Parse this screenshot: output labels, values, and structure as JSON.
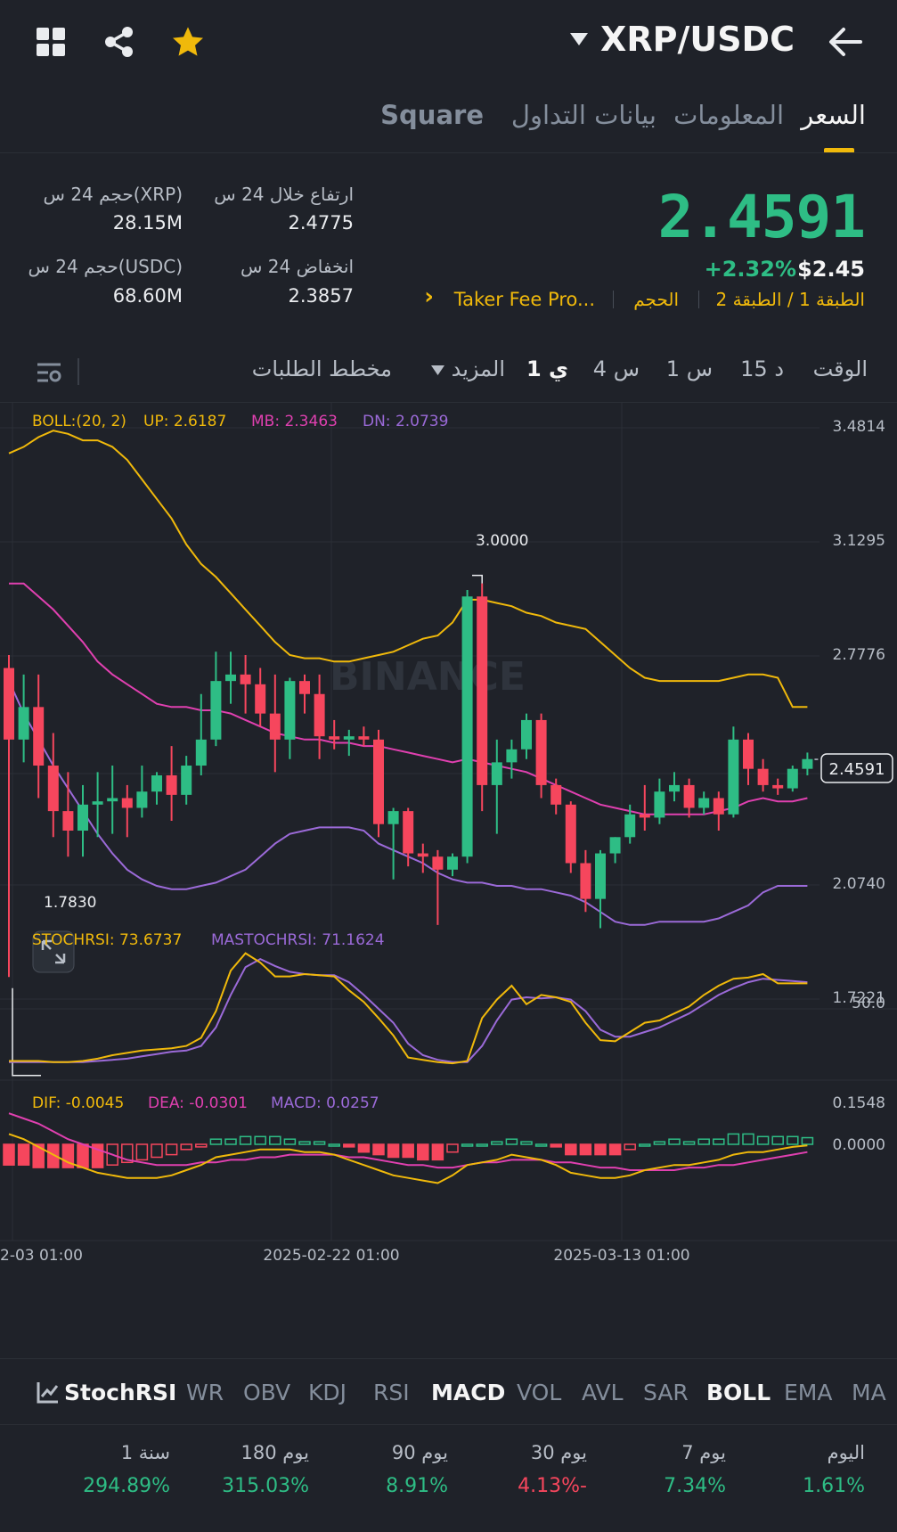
{
  "header": {
    "pair": "XRP/USDC",
    "icons": [
      "grid-icon",
      "share-icon",
      "star-icon",
      "dropdown-caret-icon",
      "back-arrow-icon"
    ]
  },
  "tabs": [
    "السعر",
    "المعلومات",
    "بيانات التداول",
    "Square"
  ],
  "stats": {
    "price": "2.4591",
    "fiat": "$2.45",
    "change": "+2.32%",
    "high_label": "ارتفاع خلال 24 س",
    "high": "2.4775",
    "low_label": "انخفاض 24 س",
    "low": "2.3857",
    "vol_xrp_label": "حجم 24 س(XRP)",
    "vol_xrp": "28.15M",
    "vol_usdc_label": "حجم 24 س(USDC)",
    "vol_usdc": "68.60M",
    "tag1": "الطبقة 1 / الطبقة 2",
    "tag2": "الحجم",
    "tag3": "Taker Fee Pro...",
    "tag_arrow": "›"
  },
  "intervals": {
    "time": "الوقت",
    "m15": "15 د",
    "h1": "1 س",
    "h4": "4 س",
    "d1": "1 ي",
    "more": "المزيد",
    "depth": "مخطط الطلبات"
  },
  "chart": {
    "boll_label": "BOLL:(20, 2)",
    "boll_up": "UP: 2.6187",
    "boll_mb": "MB: 2.3463",
    "boll_dn": "DN: 2.0739",
    "y_ticks": [
      "3.4814",
      "3.1295",
      "2.7776",
      "2.0740",
      "1.7221"
    ],
    "current_price": "2.4591",
    "max_label": "3.0000",
    "min_label": "1.7830",
    "watermark": "BINANCE",
    "stoch_label": "STOCHRSI: 73.6737",
    "mastoch_label": "MASTOCHRSI: 71.1624",
    "stoch_tick": "50.0",
    "dif_label": "DIF: -0.0045",
    "dea_label": "DEA: -0.0301",
    "macd_label": "MACD: 0.0257",
    "macd_ticks": [
      "0.1548",
      "0.0000"
    ],
    "x_labels": [
      "2-03 01:00",
      "2025-02-22 01:00",
      "2025-03-13 01:00"
    ],
    "colors": {
      "up": "#2ebd85",
      "down": "#f6465d",
      "boll_up": "#f0b90b",
      "boll_mb": "#e040b0",
      "boll_dn": "#9b6ad8"
    }
  },
  "chart_data": {
    "type": "candlestick",
    "interval": "1d",
    "ylim": [
      1.7221,
      3.4814
    ],
    "candles": [
      {
        "o": 2.74,
        "h": 2.78,
        "c": 2.52,
        "l": 1.79
      },
      {
        "o": 2.52,
        "h": 2.72,
        "c": 2.62,
        "l": 2.45
      },
      {
        "o": 2.62,
        "h": 2.72,
        "c": 2.44,
        "l": 2.34
      },
      {
        "o": 2.44,
        "h": 2.54,
        "c": 2.3,
        "l": 2.22
      },
      {
        "o": 2.3,
        "h": 2.42,
        "c": 2.24,
        "l": 2.16
      },
      {
        "o": 2.24,
        "h": 2.38,
        "c": 2.32,
        "l": 2.16
      },
      {
        "o": 2.32,
        "h": 2.42,
        "c": 2.33,
        "l": 2.22
      },
      {
        "o": 2.33,
        "h": 2.44,
        "c": 2.34,
        "l": 2.23
      },
      {
        "o": 2.34,
        "h": 2.38,
        "c": 2.31,
        "l": 2.22
      },
      {
        "o": 2.31,
        "h": 2.44,
        "c": 2.36,
        "l": 2.28
      },
      {
        "o": 2.36,
        "h": 2.42,
        "c": 2.41,
        "l": 2.32
      },
      {
        "o": 2.41,
        "h": 2.5,
        "c": 2.35,
        "l": 2.27
      },
      {
        "o": 2.35,
        "h": 2.47,
        "c": 2.44,
        "l": 2.32
      },
      {
        "o": 2.44,
        "h": 2.66,
        "c": 2.52,
        "l": 2.41
      },
      {
        "o": 2.52,
        "h": 2.79,
        "c": 2.7,
        "l": 2.5
      },
      {
        "o": 2.7,
        "h": 2.79,
        "c": 2.72,
        "l": 2.63
      },
      {
        "o": 2.72,
        "h": 2.78,
        "c": 2.69,
        "l": 2.6
      },
      {
        "o": 2.69,
        "h": 2.74,
        "c": 2.6,
        "l": 2.56
      },
      {
        "o": 2.6,
        "h": 2.72,
        "c": 2.52,
        "l": 2.42
      },
      {
        "o": 2.52,
        "h": 2.71,
        "c": 2.7,
        "l": 2.46
      },
      {
        "o": 2.7,
        "h": 2.72,
        "c": 2.66,
        "l": 2.6
      },
      {
        "o": 2.66,
        "h": 2.72,
        "c": 2.53,
        "l": 2.46
      },
      {
        "o": 2.53,
        "h": 2.58,
        "c": 2.52,
        "l": 2.49
      },
      {
        "o": 2.52,
        "h": 2.55,
        "c": 2.53,
        "l": 2.47
      },
      {
        "o": 2.53,
        "h": 2.56,
        "c": 2.52,
        "l": 2.5
      },
      {
        "o": 2.52,
        "h": 2.55,
        "c": 2.26,
        "l": 2.22
      },
      {
        "o": 2.26,
        "h": 2.31,
        "c": 2.3,
        "l": 2.09
      },
      {
        "o": 2.3,
        "h": 2.31,
        "c": 2.17,
        "l": 2.13
      },
      {
        "o": 2.17,
        "h": 2.2,
        "c": 2.16,
        "l": 2.11
      },
      {
        "o": 2.16,
        "h": 2.18,
        "c": 2.12,
        "l": 1.95
      },
      {
        "o": 2.12,
        "h": 2.17,
        "c": 2.16,
        "l": 2.1
      },
      {
        "o": 2.16,
        "h": 2.98,
        "c": 2.96,
        "l": 2.14
      },
      {
        "o": 2.96,
        "h": 3.0,
        "c": 2.38,
        "l": 2.3
      },
      {
        "o": 2.38,
        "h": 2.52,
        "c": 2.45,
        "l": 2.23
      },
      {
        "o": 2.45,
        "h": 2.52,
        "c": 2.49,
        "l": 2.4
      },
      {
        "o": 2.49,
        "h": 2.6,
        "c": 2.58,
        "l": 2.46
      },
      {
        "o": 2.58,
        "h": 2.6,
        "c": 2.38,
        "l": 2.34
      },
      {
        "o": 2.38,
        "h": 2.4,
        "c": 2.32,
        "l": 2.29
      },
      {
        "o": 2.32,
        "h": 2.33,
        "c": 2.14,
        "l": 2.11
      },
      {
        "o": 2.14,
        "h": 2.18,
        "c": 2.03,
        "l": 1.99
      },
      {
        "o": 2.03,
        "h": 2.18,
        "c": 2.17,
        "l": 1.94
      },
      {
        "o": 2.17,
        "h": 2.22,
        "c": 2.22,
        "l": 2.14
      },
      {
        "o": 2.22,
        "h": 2.32,
        "c": 2.29,
        "l": 2.2
      },
      {
        "o": 2.29,
        "h": 2.38,
        "c": 2.28,
        "l": 2.24
      },
      {
        "o": 2.28,
        "h": 2.4,
        "c": 2.36,
        "l": 2.26
      },
      {
        "o": 2.36,
        "h": 2.42,
        "c": 2.38,
        "l": 2.33
      },
      {
        "o": 2.38,
        "h": 2.4,
        "c": 2.31,
        "l": 2.28
      },
      {
        "o": 2.31,
        "h": 2.36,
        "c": 2.34,
        "l": 2.29
      },
      {
        "o": 2.34,
        "h": 2.36,
        "c": 2.29,
        "l": 2.24
      },
      {
        "o": 2.29,
        "h": 2.56,
        "c": 2.52,
        "l": 2.28
      },
      {
        "o": 2.52,
        "h": 2.54,
        "c": 2.43,
        "l": 2.38
      },
      {
        "o": 2.43,
        "h": 2.46,
        "c": 2.38,
        "l": 2.36
      },
      {
        "o": 2.38,
        "h": 2.4,
        "c": 2.37,
        "l": 2.35
      },
      {
        "o": 2.37,
        "h": 2.44,
        "c": 2.43,
        "l": 2.36
      },
      {
        "o": 2.43,
        "h": 2.48,
        "c": 2.46,
        "l": 2.41
      }
    ],
    "boll_up": [
      3.4,
      3.42,
      3.45,
      3.47,
      3.46,
      3.44,
      3.44,
      3.42,
      3.38,
      3.32,
      3.26,
      3.2,
      3.12,
      3.06,
      3.02,
      2.97,
      2.92,
      2.87,
      2.82,
      2.78,
      2.77,
      2.77,
      2.76,
      2.76,
      2.77,
      2.78,
      2.79,
      2.81,
      2.83,
      2.84,
      2.88,
      2.95,
      2.95,
      2.94,
      2.93,
      2.91,
      2.9,
      2.88,
      2.87,
      2.86,
      2.82,
      2.78,
      2.74,
      2.71,
      2.7,
      2.7,
      2.7,
      2.7,
      2.7,
      2.71,
      2.72,
      2.72,
      2.71,
      2.62,
      2.62
    ],
    "boll_mb": [
      3.0,
      3.0,
      2.96,
      2.92,
      2.87,
      2.82,
      2.76,
      2.72,
      2.69,
      2.66,
      2.63,
      2.62,
      2.62,
      2.61,
      2.61,
      2.6,
      2.58,
      2.56,
      2.54,
      2.53,
      2.52,
      2.52,
      2.51,
      2.51,
      2.5,
      2.5,
      2.49,
      2.48,
      2.47,
      2.46,
      2.45,
      2.46,
      2.45,
      2.44,
      2.43,
      2.42,
      2.4,
      2.38,
      2.36,
      2.34,
      2.32,
      2.31,
      2.3,
      2.29,
      2.29,
      2.29,
      2.29,
      2.29,
      2.3,
      2.31,
      2.33,
      2.34,
      2.33,
      2.33,
      2.34
    ],
    "boll_dn": [
      2.7,
      2.6,
      2.52,
      2.44,
      2.37,
      2.3,
      2.23,
      2.17,
      2.12,
      2.09,
      2.07,
      2.06,
      2.06,
      2.07,
      2.08,
      2.1,
      2.12,
      2.16,
      2.2,
      2.23,
      2.24,
      2.25,
      2.25,
      2.25,
      2.24,
      2.2,
      2.18,
      2.16,
      2.14,
      2.11,
      2.09,
      2.08,
      2.08,
      2.07,
      2.07,
      2.06,
      2.06,
      2.05,
      2.04,
      2.02,
      1.99,
      1.96,
      1.95,
      1.95,
      1.96,
      1.96,
      1.96,
      1.96,
      1.97,
      1.99,
      2.01,
      2.05,
      2.07,
      2.07,
      2.07
    ],
    "stochrsi": [
      5,
      5,
      5,
      4,
      4,
      5,
      7,
      10,
      12,
      14,
      15,
      16,
      18,
      25,
      48,
      83,
      98,
      90,
      78,
      78,
      80,
      79,
      78,
      66,
      56,
      42,
      27,
      8,
      6,
      4,
      3,
      5,
      42,
      58,
      70,
      54,
      62,
      60,
      56,
      38,
      23,
      22,
      30,
      38,
      40,
      46,
      52,
      62,
      70,
      76,
      77,
      80,
      72,
      72,
      72
    ],
    "mastochrsi": [
      4,
      4,
      4,
      4,
      4,
      4,
      5,
      6,
      7,
      9,
      11,
      13,
      14,
      18,
      34,
      62,
      86,
      93,
      87,
      82,
      80,
      79,
      79,
      73,
      62,
      50,
      38,
      20,
      10,
      6,
      4,
      4,
      18,
      40,
      58,
      60,
      59,
      60,
      58,
      48,
      32,
      26,
      26,
      30,
      34,
      40,
      46,
      54,
      62,
      68,
      73,
      76,
      75,
      74,
      73
    ],
    "macd_dif": [
      0.04,
      0.02,
      -0.01,
      -0.04,
      -0.07,
      -0.09,
      -0.11,
      -0.12,
      -0.13,
      -0.13,
      -0.13,
      -0.12,
      -0.1,
      -0.08,
      -0.05,
      -0.04,
      -0.03,
      -0.02,
      -0.02,
      -0.02,
      -0.03,
      -0.03,
      -0.04,
      -0.06,
      -0.08,
      -0.1,
      -0.12,
      -0.13,
      -0.14,
      -0.15,
      -0.12,
      -0.08,
      -0.07,
      -0.06,
      -0.04,
      -0.05,
      -0.06,
      -0.08,
      -0.11,
      -0.12,
      -0.13,
      -0.13,
      -0.12,
      -0.1,
      -0.09,
      -0.08,
      -0.08,
      -0.07,
      -0.06,
      -0.04,
      -0.03,
      -0.03,
      -0.02,
      -0.01,
      -0.0045
    ],
    "macd_dea": [
      0.12,
      0.1,
      0.08,
      0.05,
      0.02,
      0.0,
      -0.02,
      -0.04,
      -0.06,
      -0.07,
      -0.08,
      -0.08,
      -0.08,
      -0.07,
      -0.07,
      -0.06,
      -0.06,
      -0.05,
      -0.05,
      -0.04,
      -0.04,
      -0.04,
      -0.04,
      -0.05,
      -0.05,
      -0.06,
      -0.07,
      -0.08,
      -0.08,
      -0.09,
      -0.09,
      -0.08,
      -0.07,
      -0.07,
      -0.06,
      -0.06,
      -0.06,
      -0.07,
      -0.07,
      -0.08,
      -0.09,
      -0.09,
      -0.1,
      -0.1,
      -0.1,
      -0.1,
      -0.09,
      -0.09,
      -0.08,
      -0.08,
      -0.07,
      -0.06,
      -0.05,
      -0.04,
      -0.0301
    ],
    "macd_hist": [
      -0.08,
      -0.08,
      -0.09,
      -0.09,
      -0.09,
      -0.09,
      -0.09,
      -0.08,
      -0.07,
      -0.06,
      -0.05,
      -0.04,
      -0.02,
      -0.01,
      0.02,
      0.02,
      0.03,
      0.03,
      0.03,
      0.02,
      0.01,
      0.01,
      0.0,
      -0.01,
      -0.03,
      -0.04,
      -0.05,
      -0.05,
      -0.06,
      -0.06,
      -0.03,
      0.0,
      0.0,
      0.01,
      0.02,
      0.01,
      0.0,
      -0.01,
      -0.04,
      -0.04,
      -0.04,
      -0.04,
      -0.02,
      0.0,
      0.01,
      0.02,
      0.01,
      0.02,
      0.02,
      0.04,
      0.04,
      0.03,
      0.03,
      0.03,
      0.0257
    ]
  },
  "indicators": [
    "StochRSI",
    "WR",
    "OBV",
    "KDJ",
    "RSI",
    "MACD",
    "VOL",
    "AVL",
    "SAR",
    "BOLL",
    "EMA",
    "MA"
  ],
  "performance": [
    {
      "label": "اليوم",
      "value": "1.61%",
      "color": "#2ebd85"
    },
    {
      "label": "7 يوم",
      "value": "7.34%",
      "color": "#2ebd85"
    },
    {
      "label": "30 يوم",
      "value": "4.13%-",
      "color": "#f6465d"
    },
    {
      "label": "90 يوم",
      "value": "8.91%",
      "color": "#2ebd85"
    },
    {
      "label": "180 يوم",
      "value": "315.03%",
      "color": "#2ebd85"
    },
    {
      "label": "1 سنة",
      "value": "294.89%",
      "color": "#2ebd85"
    }
  ]
}
